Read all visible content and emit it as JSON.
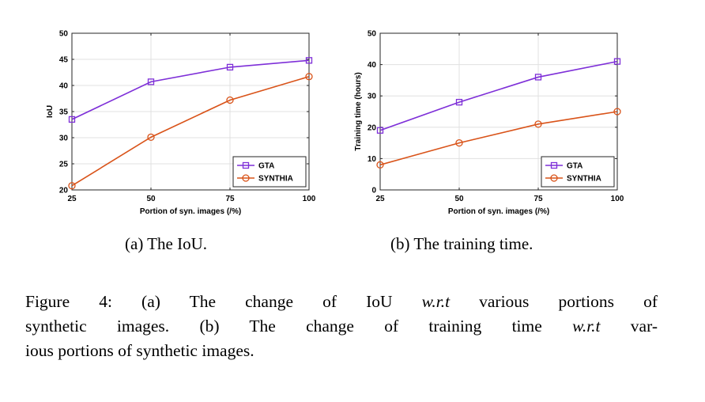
{
  "chart_data": [
    {
      "type": "line",
      "x": [
        25,
        50,
        75,
        100
      ],
      "xlabel": "Portion of syn. images (/%)",
      "ylabel": "IoU",
      "xlim": [
        25,
        100
      ],
      "ylim": [
        20,
        50
      ],
      "xticks": [
        "25",
        "50",
        "75",
        "100"
      ],
      "yticks": [
        "20",
        "25",
        "30",
        "35",
        "40",
        "45",
        "50"
      ],
      "grid": true,
      "legend_position": "bottom-right",
      "series": [
        {
          "name": "GTA",
          "marker": "square",
          "color": "#7e2fd8",
          "values": [
            33.5,
            40.7,
            43.5,
            44.8
          ]
        },
        {
          "name": "SYNTHIA",
          "marker": "circle",
          "color": "#d95319",
          "values": [
            20.8,
            30.1,
            37.2,
            41.7
          ]
        }
      ]
    },
    {
      "type": "line",
      "x": [
        25,
        50,
        75,
        100
      ],
      "xlabel": "Portion of syn. images (/%)",
      "ylabel": "Training time (hours)",
      "xlim": [
        25,
        100
      ],
      "ylim": [
        0,
        50
      ],
      "xticks": [
        "25",
        "50",
        "75",
        "100"
      ],
      "yticks": [
        "0",
        "10",
        "20",
        "30",
        "40",
        "50"
      ],
      "grid": true,
      "legend_position": "bottom-right",
      "series": [
        {
          "name": "GTA",
          "marker": "square",
          "color": "#7e2fd8",
          "values": [
            19,
            28,
            36,
            41
          ]
        },
        {
          "name": "SYNTHIA",
          "marker": "circle",
          "color": "#d95319",
          "values": [
            8,
            15,
            21,
            25
          ]
        }
      ]
    }
  ],
  "captions": {
    "a": "(a) The IoU.",
    "b": "(b) The training time.",
    "figure": {
      "l1_pre": "Figure 4:  (a) The change of IoU ",
      "l1_em": "w.r.t",
      "l1_post": " various portions of",
      "l2_pre": "synthetic images. (b) The change of training time ",
      "l2_em": "w.r.t",
      "l2_post": " var-",
      "l3": "ious portions of synthetic images."
    }
  }
}
